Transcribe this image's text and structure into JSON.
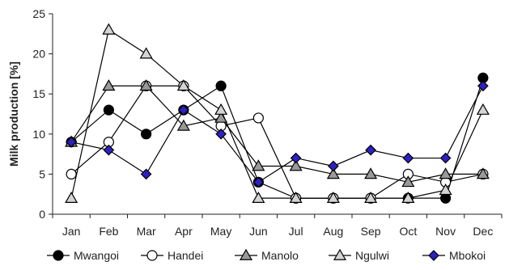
{
  "chart_data": {
    "type": "line",
    "title": "",
    "xlabel": "",
    "ylabel": "Milk production [%]",
    "ylim": [
      0,
      25
    ],
    "yticks": [
      0,
      5,
      10,
      15,
      20,
      25
    ],
    "grid": false,
    "legend_position": "bottom",
    "categories": [
      "Jan",
      "Feb",
      "Mar",
      "Apr",
      "May",
      "Jun",
      "Jul",
      "Aug",
      "Sep",
      "Oct",
      "Nov",
      "Dec"
    ],
    "series": [
      {
        "name": "Mwangoi",
        "marker": "circle",
        "fill": "#000000",
        "values": [
          9,
          13,
          10,
          13,
          16,
          4,
          2,
          2,
          2,
          2,
          2,
          17
        ]
      },
      {
        "name": "Handei",
        "marker": "circle",
        "fill": "#ffffff",
        "values": [
          5,
          9,
          16,
          16,
          11,
          12,
          2,
          2,
          2,
          5,
          4,
          5
        ]
      },
      {
        "name": "Manolo",
        "marker": "triangle",
        "fill": "#999999",
        "values": [
          9,
          16,
          16,
          11,
          12,
          6,
          6,
          5,
          5,
          4,
          5,
          5
        ]
      },
      {
        "name": "Ngulwi",
        "marker": "triangle",
        "fill": "#d4d4d4",
        "values": [
          2,
          23,
          20,
          16,
          13,
          2,
          2,
          2,
          2,
          2,
          3,
          13
        ]
      },
      {
        "name": "Mbokoi",
        "marker": "diamond",
        "fill": "#2b22c4",
        "values": [
          9,
          8,
          5,
          13,
          10,
          4,
          7,
          6,
          8,
          7,
          7,
          16
        ]
      }
    ]
  }
}
